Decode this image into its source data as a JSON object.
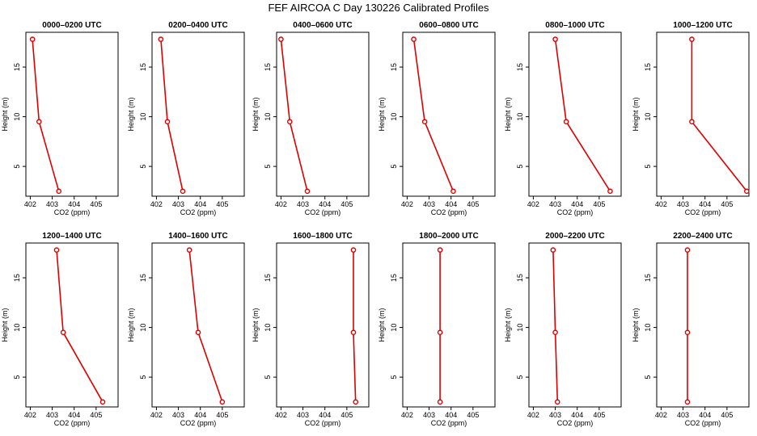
{
  "figure": {
    "title": "FEF AIRCOA C  Day 130226  Calibrated Profiles"
  },
  "style": {
    "line_color": "#dd0000",
    "marker_color": "#dd0000",
    "axis_color": "#000000"
  },
  "chart_data": [
    {
      "type": "line",
      "title": "0000–0200 UTC",
      "xlabel": "CO2 (ppm)",
      "ylabel": "Height (m)",
      "xlim": [
        401.8,
        406.0
      ],
      "ylim": [
        2.0,
        18.5
      ],
      "xticks": [
        "402",
        "403",
        "404",
        "405"
      ],
      "yticks": [
        "5",
        "10",
        "15"
      ],
      "x": [
        402.1,
        402.4,
        403.3
      ],
      "y": [
        17.8,
        9.5,
        2.5
      ]
    },
    {
      "type": "line",
      "title": "0200–0400 UTC",
      "xlabel": "CO2 (ppm)",
      "ylabel": "Height (m)",
      "xlim": [
        401.8,
        406.0
      ],
      "ylim": [
        2.0,
        18.5
      ],
      "xticks": [
        "402",
        "403",
        "404",
        "405"
      ],
      "yticks": [
        "5",
        "10",
        "15"
      ],
      "x": [
        402.2,
        402.5,
        403.2
      ],
      "y": [
        17.8,
        9.5,
        2.5
      ]
    },
    {
      "type": "line",
      "title": "0400–0600 UTC",
      "xlabel": "CO2 (ppm)",
      "ylabel": "Height (m)",
      "xlim": [
        401.8,
        406.0
      ],
      "ylim": [
        2.0,
        18.5
      ],
      "xticks": [
        "402",
        "403",
        "404",
        "405"
      ],
      "yticks": [
        "5",
        "10",
        "15"
      ],
      "x": [
        402.0,
        402.4,
        403.2
      ],
      "y": [
        17.8,
        9.5,
        2.5
      ]
    },
    {
      "type": "line",
      "title": "0600–0800 UTC",
      "xlabel": "CO2 (ppm)",
      "ylabel": "Height (m)",
      "xlim": [
        401.8,
        406.0
      ],
      "ylim": [
        2.0,
        18.5
      ],
      "xticks": [
        "402",
        "403",
        "404",
        "405"
      ],
      "yticks": [
        "5",
        "10",
        "15"
      ],
      "x": [
        402.3,
        402.8,
        404.1
      ],
      "y": [
        17.8,
        9.5,
        2.5
      ]
    },
    {
      "type": "line",
      "title": "0800–1000 UTC",
      "xlabel": "CO2 (ppm)",
      "ylabel": "Height (m)",
      "xlim": [
        401.8,
        406.0
      ],
      "ylim": [
        2.0,
        18.5
      ],
      "xticks": [
        "402",
        "403",
        "404",
        "405"
      ],
      "yticks": [
        "5",
        "10",
        "15"
      ],
      "x": [
        403.0,
        403.5,
        405.5
      ],
      "y": [
        17.8,
        9.5,
        2.5
      ]
    },
    {
      "type": "line",
      "title": "1000–1200 UTC",
      "xlabel": "CO2 (ppm)",
      "ylabel": "Height (m)",
      "xlim": [
        401.8,
        406.0
      ],
      "ylim": [
        2.0,
        18.5
      ],
      "xticks": [
        "402",
        "403",
        "404",
        "405"
      ],
      "yticks": [
        "5",
        "10",
        "15"
      ],
      "x": [
        403.4,
        403.4,
        405.9
      ],
      "y": [
        17.8,
        9.5,
        2.5
      ]
    },
    {
      "type": "line",
      "title": "1200–1400 UTC",
      "xlabel": "CO2 (ppm)",
      "ylabel": "Height (m)",
      "xlim": [
        401.8,
        406.0
      ],
      "ylim": [
        2.0,
        18.5
      ],
      "xticks": [
        "402",
        "403",
        "404",
        "405"
      ],
      "yticks": [
        "5",
        "10",
        "15"
      ],
      "x": [
        403.2,
        403.5,
        405.3
      ],
      "y": [
        17.8,
        9.5,
        2.5
      ]
    },
    {
      "type": "line",
      "title": "1400–1600 UTC",
      "xlabel": "CO2 (ppm)",
      "ylabel": "Height (m)",
      "xlim": [
        401.8,
        406.0
      ],
      "ylim": [
        2.0,
        18.5
      ],
      "xticks": [
        "402",
        "403",
        "404",
        "405"
      ],
      "yticks": [
        "5",
        "10",
        "15"
      ],
      "x": [
        403.5,
        403.9,
        405.0
      ],
      "y": [
        17.8,
        9.5,
        2.5
      ]
    },
    {
      "type": "line",
      "title": "1600–1800 UTC",
      "xlabel": "CO2 (ppm)",
      "ylabel": "Height (m)",
      "xlim": [
        401.8,
        406.0
      ],
      "ylim": [
        2.0,
        18.5
      ],
      "xticks": [
        "402",
        "403",
        "404",
        "405"
      ],
      "yticks": [
        "5",
        "10",
        "15"
      ],
      "x": [
        405.3,
        405.3,
        405.4
      ],
      "y": [
        17.8,
        9.5,
        2.5
      ]
    },
    {
      "type": "line",
      "title": "1800–2000 UTC",
      "xlabel": "CO2 (ppm)",
      "ylabel": "Height (m)",
      "xlim": [
        401.8,
        406.0
      ],
      "ylim": [
        2.0,
        18.5
      ],
      "xticks": [
        "402",
        "403",
        "404",
        "405"
      ],
      "yticks": [
        "5",
        "10",
        "15"
      ],
      "x": [
        403.5,
        403.5,
        403.5
      ],
      "y": [
        17.8,
        9.5,
        2.5
      ]
    },
    {
      "type": "line",
      "title": "2000–2200 UTC",
      "xlabel": "CO2 (ppm)",
      "ylabel": "Height (m)",
      "xlim": [
        401.8,
        406.0
      ],
      "ylim": [
        2.0,
        18.5
      ],
      "xticks": [
        "402",
        "403",
        "404",
        "405"
      ],
      "yticks": [
        "5",
        "10",
        "15"
      ],
      "x": [
        402.9,
        403.0,
        403.1
      ],
      "y": [
        17.8,
        9.5,
        2.5
      ]
    },
    {
      "type": "line",
      "title": "2200–2400 UTC",
      "xlabel": "CO2 (ppm)",
      "ylabel": "Height (m)",
      "xlim": [
        401.8,
        406.0
      ],
      "ylim": [
        2.0,
        18.5
      ],
      "xticks": [
        "402",
        "403",
        "404",
        "405"
      ],
      "yticks": [
        "5",
        "10",
        "15"
      ],
      "x": [
        403.2,
        403.2,
        403.2
      ],
      "y": [
        17.8,
        9.5,
        2.5
      ]
    }
  ]
}
